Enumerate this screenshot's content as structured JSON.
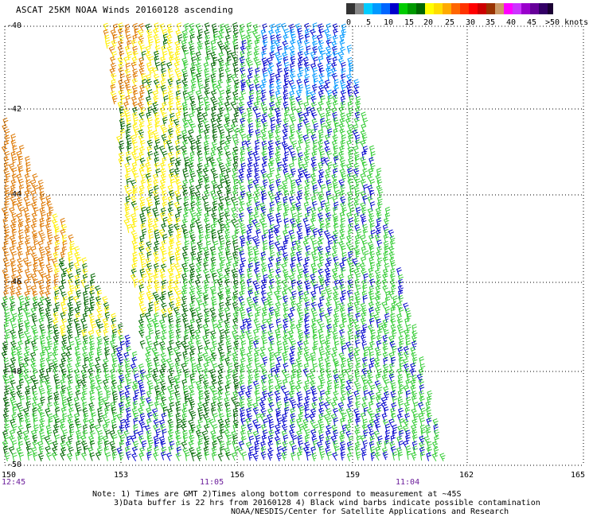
{
  "title": "ASCAT 25KM NOAA Winds 20160128 ascending",
  "legend": {
    "colors": [
      "#333333",
      "#888888",
      "#00ccff",
      "#0099ff",
      "#0000cc",
      "#00cc00",
      "#006600",
      "#ffff00",
      "#ffcc00",
      "#ff6600",
      "#ff0000",
      "#990000",
      "#996633",
      "#ff00ff",
      "#9900cc",
      "#330066"
    ],
    "labels": [
      "0",
      "5",
      "10",
      "15",
      "20",
      "25",
      "30",
      "35",
      "40",
      "45",
      ">50 knots"
    ]
  },
  "axes": {
    "lat_labels": [
      "-40",
      "-42",
      "-44",
      "-46",
      "-48",
      "-50"
    ],
    "lon_labels": [
      "150",
      "153",
      "156",
      "159",
      "162",
      "165"
    ],
    "time_labels": [
      "12:45",
      "11:05",
      "11:04"
    ]
  },
  "wind_colors": {
    "light_green": "#33cc33",
    "dark_green": "#006600",
    "blue": "#0000cc",
    "light_blue": "#0099ff",
    "yellow": "#ffee00",
    "orange": "#dd7700"
  },
  "notes": {
    "line1": "Note: 1) Times are GMT 2)Times along bottom correspond to measurement at ~45S",
    "line2": "3)Data buffer is 22 hrs from 20160128 4) Black wind barbs indicate possible contamination",
    "line3": "NOAA/NESDIS/Center for Satellite Applications and Research"
  }
}
